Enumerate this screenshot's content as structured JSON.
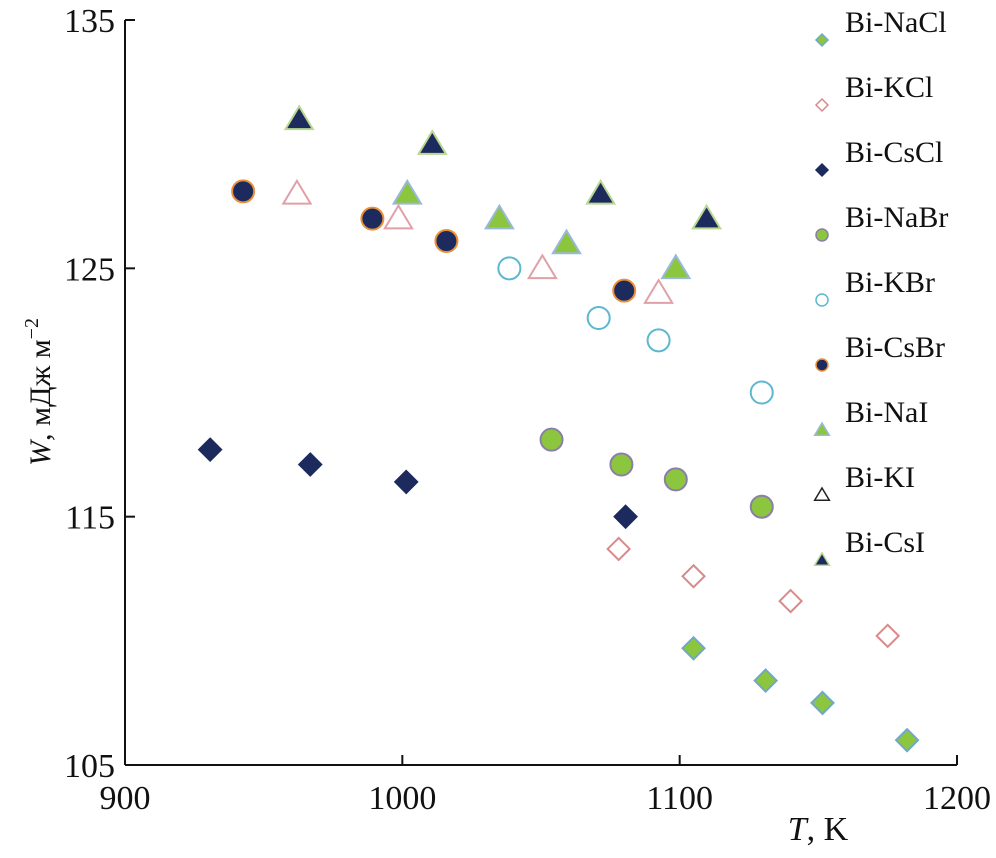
{
  "chart_data": {
    "type": "scatter",
    "xlabel_var": "T",
    "xlabel_unit": ", K",
    "ylabel_var": "W",
    "ylabel_unit": ", мДж м",
    "ylabel_sup": "−2",
    "xlim": [
      900,
      1200
    ],
    "ylim": [
      105,
      135
    ],
    "xticks": [
      "900",
      "1000",
      "1100",
      "1200"
    ],
    "yticks": [
      "105",
      "115",
      "125",
      "135"
    ],
    "grid": false,
    "legend_position": "right",
    "series": [
      {
        "name": "Bi-NaCl",
        "marker": "diamond",
        "fill": "#8cc63f",
        "stroke": "#6fa8c8",
        "x": [
          1105,
          1131,
          1151.5,
          1182
        ],
        "y": [
          109.7,
          108.4,
          107.5,
          106.0
        ]
      },
      {
        "name": "Bi-KCl",
        "marker": "diamond",
        "fill": "none",
        "stroke": "#d98a8a",
        "x": [
          1078,
          1105,
          1140,
          1175
        ],
        "y": [
          113.7,
          112.6,
          111.6,
          110.2
        ]
      },
      {
        "name": "Bi-CsCl",
        "marker": "diamond",
        "fill": "#1c2a5e",
        "stroke": "#1c2a5e",
        "x": [
          930.7,
          966.8,
          1001.4,
          1080.5
        ],
        "y": [
          117.7,
          117.1,
          116.4,
          115.0
        ]
      },
      {
        "name": "Bi-NaBr",
        "marker": "circle",
        "fill": "#8cc63f",
        "stroke": "#8a7fa8",
        "x": [
          1053.8,
          1079,
          1098.6,
          1129.6
        ],
        "y": [
          118.1,
          117.1,
          116.5,
          115.4
        ]
      },
      {
        "name": "Bi-KBr",
        "marker": "circle",
        "fill": "none",
        "stroke": "#5bb8d0",
        "x": [
          1038.6,
          1070.8,
          1092.4,
          1129.6
        ],
        "y": [
          125.0,
          123.0,
          122.1,
          120.0
        ]
      },
      {
        "name": "Bi-CsBr",
        "marker": "circle",
        "fill": "#1c2a5e",
        "stroke": "#e8903a",
        "x": [
          942.6,
          989.2,
          1015.9,
          1080
        ],
        "y": [
          128.1,
          127.0,
          126.1,
          124.1
        ]
      },
      {
        "name": "Bi-NaI",
        "marker": "triangle",
        "fill": "#8cc63f",
        "stroke": "#9ab8d8",
        "x": [
          1001.8,
          1035,
          1059.2,
          1098.6
        ],
        "y": [
          128.0,
          127.0,
          126.0,
          125.0
        ]
      },
      {
        "name": "Bi-KI",
        "marker": "triangle",
        "fill": "none",
        "stroke": "#e0a0a8",
        "legend_stroke": "#222222",
        "x": [
          962,
          998.6,
          1050.5,
          1092.4
        ],
        "y": [
          128.0,
          127.0,
          125.0,
          124.0
        ]
      },
      {
        "name": "Bi-CsI",
        "marker": "triangle",
        "fill": "#1c2a5e",
        "stroke": "#b8d890",
        "x": [
          962.8,
          1010.8,
          1071.5,
          1109.7
        ],
        "y": [
          131.0,
          130.0,
          128.0,
          127.0
        ]
      }
    ]
  }
}
